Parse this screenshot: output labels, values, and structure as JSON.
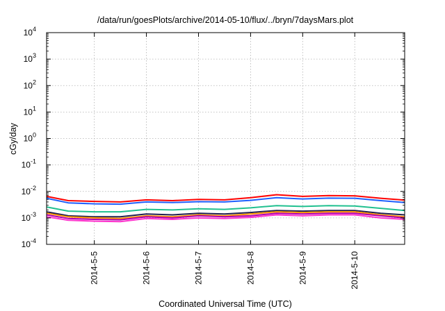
{
  "chart_data": {
    "type": "line",
    "title": "/data/run/goesPlots/archive/2014-05-10/flux/../bryn/7daysMars.plot",
    "xlabel": "Coordinated Universal Time (UTC)",
    "ylabel": "cGy/day",
    "yscale": "log",
    "ylim": [
      0.0001,
      10000
    ],
    "xlim": [
      "2014-05-04T02:00",
      "2014-05-10T23:00"
    ],
    "x_ticks": [
      "2014-5-5",
      "2014-5-6",
      "2014-5-7",
      "2014-5-8",
      "2014-5-9",
      "2014-5-10"
    ],
    "y_ticks": [
      {
        "base": "10",
        "exp": "-4",
        "value": 0.0001
      },
      {
        "base": "10",
        "exp": "-3",
        "value": 0.001
      },
      {
        "base": "10",
        "exp": "-2",
        "value": 0.01
      },
      {
        "base": "10",
        "exp": "-1",
        "value": 0.1
      },
      {
        "base": "10",
        "exp": "0",
        "value": 1
      },
      {
        "base": "10",
        "exp": "1",
        "value": 10
      },
      {
        "base": "10",
        "exp": "2",
        "value": 100
      },
      {
        "base": "10",
        "exp": "3",
        "value": 1000
      },
      {
        "base": "10",
        "exp": "4",
        "value": 10000
      }
    ],
    "grid": true,
    "x": [
      "2014-05-04T02:00",
      "2014-05-04T12:00",
      "2014-05-05T00:00",
      "2014-05-05T12:00",
      "2014-05-06T00:00",
      "2014-05-06T12:00",
      "2014-05-07T00:00",
      "2014-05-07T12:00",
      "2014-05-08T00:00",
      "2014-05-08T12:00",
      "2014-05-09T00:00",
      "2014-05-09T12:00",
      "2014-05-10T00:00",
      "2014-05-10T12:00",
      "2014-05-10T23:00"
    ],
    "series": [
      {
        "color": "#ff0000",
        "values": [
          0.0065,
          0.0045,
          0.0042,
          0.004,
          0.0048,
          0.0045,
          0.005,
          0.0048,
          0.0058,
          0.0075,
          0.0065,
          0.007,
          0.0068,
          0.0055,
          0.0047
        ]
      },
      {
        "color": "#1f5fff",
        "values": [
          0.0055,
          0.0037,
          0.0034,
          0.0033,
          0.004,
          0.0038,
          0.0041,
          0.004,
          0.0046,
          0.0058,
          0.0052,
          0.0056,
          0.0055,
          0.0045,
          0.0038
        ]
      },
      {
        "color": "#20c090",
        "values": [
          0.0026,
          0.0018,
          0.0017,
          0.0017,
          0.0021,
          0.002,
          0.0022,
          0.0021,
          0.0024,
          0.0029,
          0.0027,
          0.0029,
          0.0028,
          0.0023,
          0.0019
        ]
      },
      {
        "color": "#202050",
        "values": [
          0.0017,
          0.0012,
          0.0011,
          0.0011,
          0.0014,
          0.0013,
          0.0015,
          0.0014,
          0.0016,
          0.0019,
          0.0018,
          0.0019,
          0.0019,
          0.0015,
          0.0013
        ]
      },
      {
        "color": "#ff9500",
        "values": [
          0.0015,
          0.0011,
          0.001,
          0.00095,
          0.0012,
          0.0011,
          0.0013,
          0.0012,
          0.0014,
          0.0017,
          0.0016,
          0.0017,
          0.0017,
          0.0013,
          0.0011
        ]
      },
      {
        "color": "#b000b0",
        "values": [
          0.0013,
          0.00095,
          0.00088,
          0.00085,
          0.0011,
          0.001,
          0.0012,
          0.0011,
          0.0012,
          0.0015,
          0.0014,
          0.0015,
          0.0015,
          0.0012,
          0.001
        ]
      },
      {
        "color": "#ff33cc",
        "values": [
          0.0011,
          0.00082,
          0.00075,
          0.00072,
          0.00095,
          0.00088,
          0.001,
          0.00095,
          0.00105,
          0.0013,
          0.0012,
          0.0013,
          0.0013,
          0.001,
          0.00088
        ]
      }
    ]
  }
}
